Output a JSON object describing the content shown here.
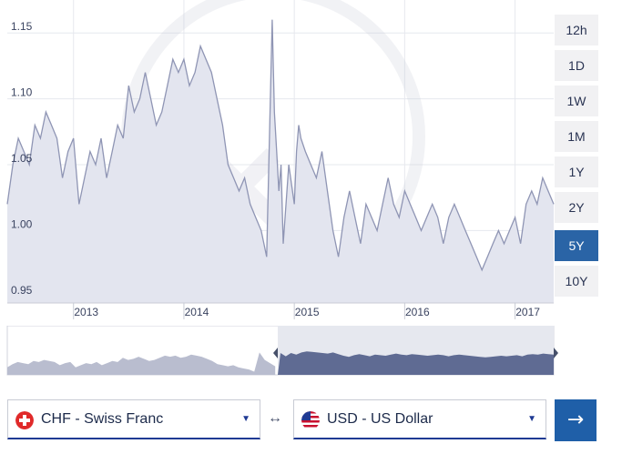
{
  "chart_data": {
    "type": "area",
    "ylim": [
      0.945,
      1.175
    ],
    "xlim": [
      2012.4,
      2017.35
    ],
    "y_ticks": [
      "0.95",
      "1.00",
      "1.05",
      "1.10",
      "1.15"
    ],
    "x_ticks": [
      "2013",
      "2014",
      "2015",
      "2016",
      "2017"
    ],
    "grid": true,
    "series": [
      {
        "x": [
          2012.4,
          2012.45,
          2012.5,
          2012.55,
          2012.6,
          2012.65,
          2012.7,
          2012.75,
          2012.8,
          2012.85,
          2012.9,
          2012.95,
          2013.0,
          2013.05,
          2013.1,
          2013.15,
          2013.2,
          2013.25,
          2013.3,
          2013.35,
          2013.4,
          2013.45,
          2013.5,
          2013.55,
          2013.6,
          2013.65,
          2013.7,
          2013.75,
          2013.8,
          2013.85,
          2013.9,
          2013.95,
          2014.0,
          2014.05,
          2014.1,
          2014.15,
          2014.2,
          2014.25,
          2014.3,
          2014.35,
          2014.4,
          2014.45,
          2014.5,
          2014.55,
          2014.6,
          2014.65,
          2014.7,
          2014.75,
          2014.8,
          2014.82,
          2014.84,
          2014.86,
          2014.88,
          2014.9,
          2014.95,
          2015.0,
          2015.02,
          2015.04,
          2015.06,
          2015.1,
          2015.15,
          2015.2,
          2015.25,
          2015.3,
          2015.35,
          2015.4,
          2015.45,
          2015.5,
          2015.55,
          2015.6,
          2015.65,
          2015.7,
          2015.75,
          2015.8,
          2015.85,
          2015.9,
          2015.95,
          2016.0,
          2016.05,
          2016.1,
          2016.15,
          2016.2,
          2016.25,
          2016.3,
          2016.35,
          2016.4,
          2016.45,
          2016.5,
          2016.55,
          2016.6,
          2016.65,
          2016.7,
          2016.75,
          2016.8,
          2016.85,
          2016.9,
          2016.95,
          2017.0,
          2017.05,
          2017.1,
          2017.15,
          2017.2,
          2017.25,
          2017.3,
          2017.35
        ],
        "values": [
          1.02,
          1.05,
          1.07,
          1.06,
          1.05,
          1.08,
          1.07,
          1.09,
          1.08,
          1.07,
          1.04,
          1.06,
          1.07,
          1.02,
          1.04,
          1.06,
          1.05,
          1.07,
          1.04,
          1.06,
          1.08,
          1.07,
          1.11,
          1.09,
          1.1,
          1.12,
          1.1,
          1.08,
          1.09,
          1.11,
          1.13,
          1.12,
          1.13,
          1.11,
          1.12,
          1.14,
          1.13,
          1.12,
          1.1,
          1.08,
          1.05,
          1.04,
          1.03,
          1.04,
          1.02,
          1.01,
          1.0,
          0.98,
          1.16,
          1.09,
          1.06,
          1.03,
          1.05,
          0.99,
          1.05,
          1.02,
          1.06,
          1.08,
          1.07,
          1.06,
          1.05,
          1.04,
          1.06,
          1.03,
          1.0,
          0.98,
          1.01,
          1.03,
          1.01,
          0.99,
          1.02,
          1.01,
          1.0,
          1.02,
          1.04,
          1.02,
          1.01,
          1.03,
          1.02,
          1.01,
          1.0,
          1.01,
          1.02,
          1.01,
          0.99,
          1.01,
          1.02,
          1.01,
          1.0,
          0.99,
          0.98,
          0.97,
          0.98,
          0.99,
          1.0,
          0.99,
          1.0,
          1.01,
          0.99,
          1.02,
          1.03,
          1.02,
          1.04,
          1.03,
          1.02
        ]
      }
    ]
  },
  "range_buttons": [
    "12h",
    "1D",
    "1W",
    "1M",
    "1Y",
    "2Y",
    "5Y",
    "10Y"
  ],
  "active_range": "5Y",
  "from_currency": "CHF - Swiss Franc",
  "to_currency": "USD - US Dollar",
  "colors": {
    "area_fill": "#e3e5ef",
    "line": "#8f95b4",
    "accent": "#2a64a6",
    "navigator_selected": "#5f6b93",
    "navigator_unselected": "#b9bdcf"
  }
}
